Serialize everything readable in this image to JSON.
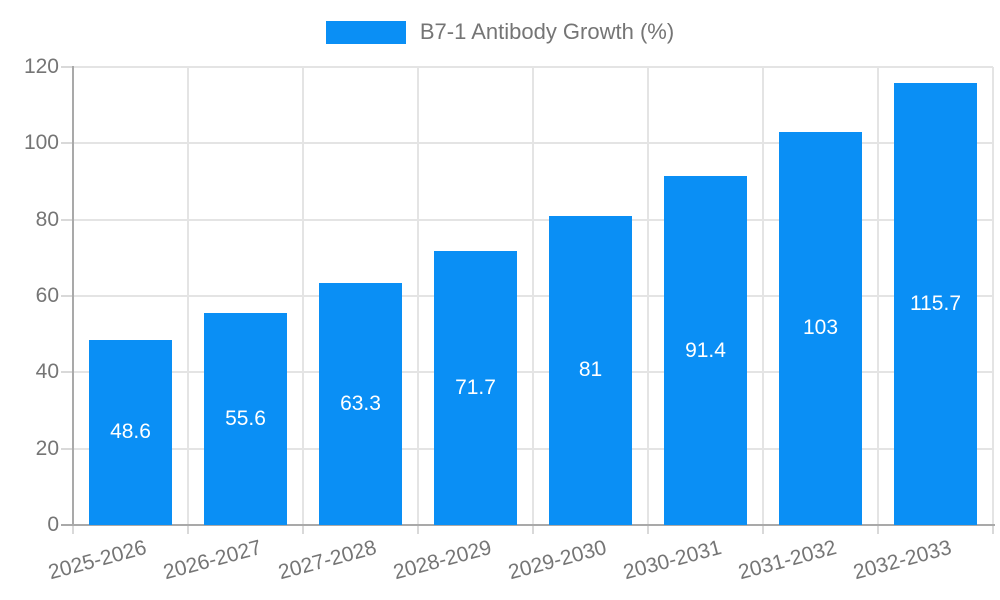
{
  "chart_data": {
    "type": "bar",
    "title": "",
    "legend": "B7-1 Antibody Growth (%)",
    "legend_position": "top",
    "categories": [
      "2025-2026",
      "2026-2027",
      "2027-2028",
      "2028-2029",
      "2029-2030",
      "2030-2031",
      "2031-2032",
      "2032-2033"
    ],
    "series": [
      {
        "name": "B7-1 Antibody Growth (%)",
        "values": [
          48.6,
          55.6,
          63.3,
          71.7,
          81,
          91.4,
          103,
          115.7
        ],
        "value_labels": [
          "48.6",
          "55.6",
          "63.3",
          "71.7",
          "81",
          "91.4",
          "103",
          "115.7"
        ]
      }
    ],
    "xlabel": "",
    "ylabel": "",
    "ylim": [
      0,
      120
    ],
    "yticks": [
      0,
      20,
      40,
      60,
      80,
      100,
      120
    ],
    "grid": true,
    "x_label_rotation_deg": -15,
    "colors": {
      "bar": "#0a8ff5",
      "grid": "#e4e4e4",
      "axis": "#a9a9a9",
      "tick": "#d9d9d9",
      "text": "#757575",
      "value_label": "#ffffff"
    }
  }
}
